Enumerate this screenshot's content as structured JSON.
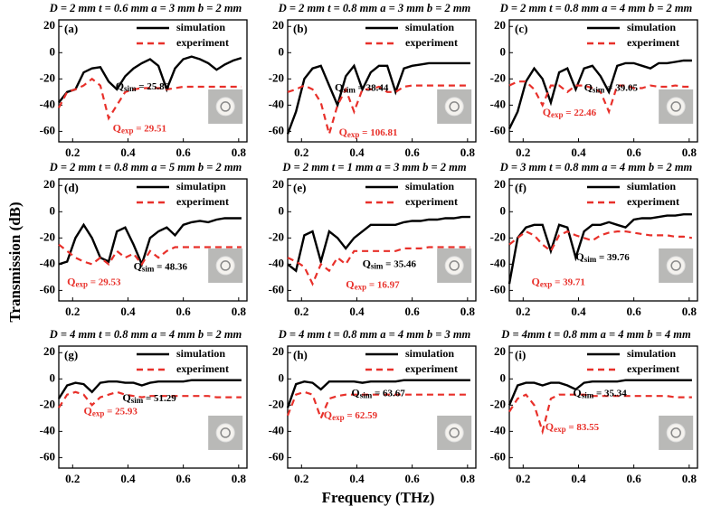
{
  "ylabel": "Transmission (dB)",
  "xlabel": "Frequency (THz)",
  "chart_data": [
    {
      "type": "line",
      "title": "D = 2 mm t = 0.6 mm a = 3 mm b = 2 mm",
      "label": "(a)",
      "x": [
        0.15,
        0.18,
        0.21,
        0.24,
        0.27,
        0.3,
        0.33,
        0.36,
        0.39,
        0.42,
        0.45,
        0.48,
        0.51,
        0.54,
        0.57,
        0.6,
        0.63,
        0.66,
        0.69,
        0.72,
        0.75,
        0.78,
        0.81
      ],
      "series": [
        {
          "name": "simulation",
          "color": "#000000",
          "dashed": false,
          "values": [
            -38,
            -30,
            -28,
            -15,
            -12,
            -11,
            -22,
            -28,
            -18,
            -12,
            -8,
            -5,
            -10,
            -28,
            -12,
            -5,
            -3,
            -5,
            -8,
            -13,
            -9,
            -6,
            -4
          ]
        },
        {
          "name": "experiment",
          "color": "#e8302a",
          "dashed": true,
          "values": [
            -42,
            -30,
            -28,
            -25,
            -20,
            -25,
            -50,
            -40,
            -30,
            -28,
            -27,
            -27,
            -27,
            -28,
            -27,
            -26,
            -26,
            -26,
            -26,
            -26,
            -26,
            -26,
            -26
          ]
        }
      ],
      "annotations": [
        {
          "symbol": "Q",
          "sub": "sim",
          "text": " = 25.86",
          "color": "#000000"
        },
        {
          "symbol": "Q",
          "sub": "exp",
          "text": " = 29.51",
          "color": "#e8302a"
        }
      ],
      "xlim": [
        0.15,
        0.83
      ],
      "ylim": [
        -68,
        25
      ],
      "xticks": [
        0.2,
        0.4,
        0.6,
        0.8
      ],
      "yticks": [
        20,
        0,
        -20,
        -40,
        -60
      ]
    },
    {
      "type": "line",
      "title": "D = 2 mm t = 0.8 mm a = 3 mm b = 2 mm",
      "label": "(b)",
      "x": [
        0.15,
        0.18,
        0.21,
        0.24,
        0.27,
        0.3,
        0.33,
        0.36,
        0.39,
        0.42,
        0.45,
        0.48,
        0.51,
        0.54,
        0.57,
        0.6,
        0.63,
        0.66,
        0.69,
        0.72,
        0.75,
        0.78,
        0.81
      ],
      "series": [
        {
          "name": "simulation",
          "color": "#000000",
          "dashed": false,
          "values": [
            -62,
            -45,
            -20,
            -12,
            -10,
            -25,
            -40,
            -18,
            -10,
            -28,
            -15,
            -10,
            -10,
            -30,
            -12,
            -10,
            -9,
            -8,
            -8,
            -8,
            -8,
            -8,
            -8
          ]
        },
        {
          "name": "experiment",
          "color": "#e8302a",
          "dashed": true,
          "values": [
            -30,
            -28,
            -25,
            -28,
            -38,
            -62,
            -40,
            -28,
            -45,
            -28,
            -28,
            -26,
            -30,
            -30,
            -26,
            -25,
            -25,
            -25,
            -25,
            -25,
            -25,
            -25,
            -25
          ]
        }
      ],
      "annotations": [
        {
          "symbol": "Q",
          "sub": "sim",
          "text": " = 38.44",
          "color": "#000000"
        },
        {
          "symbol": "Q",
          "sub": "exp",
          "text": " = 106.81",
          "color": "#e8302a"
        }
      ],
      "xlim": [
        0.15,
        0.83
      ],
      "ylim": [
        -68,
        25
      ],
      "xticks": [
        0.2,
        0.4,
        0.6,
        0.8
      ],
      "yticks": [
        20,
        0,
        -20,
        -40,
        -60
      ]
    },
    {
      "type": "line",
      "title": "D = 2 mm t = 0.8 mm a = 4 mm b = 2 mm",
      "label": "(c)",
      "x": [
        0.15,
        0.18,
        0.21,
        0.24,
        0.27,
        0.3,
        0.33,
        0.36,
        0.39,
        0.42,
        0.45,
        0.48,
        0.51,
        0.54,
        0.57,
        0.6,
        0.63,
        0.66,
        0.69,
        0.72,
        0.75,
        0.78,
        0.81
      ],
      "series": [
        {
          "name": "simulation",
          "color": "#000000",
          "dashed": false,
          "values": [
            -58,
            -45,
            -22,
            -12,
            -20,
            -38,
            -15,
            -12,
            -28,
            -12,
            -10,
            -18,
            -30,
            -10,
            -8,
            -8,
            -10,
            -12,
            -8,
            -8,
            -7,
            -6,
            -6
          ]
        },
        {
          "name": "experiment",
          "color": "#e8302a",
          "dashed": true,
          "values": [
            -25,
            -22,
            -22,
            -28,
            -40,
            -25,
            -25,
            -30,
            -25,
            -25,
            -27,
            -30,
            -45,
            -25,
            -25,
            -27,
            -27,
            -25,
            -26,
            -26,
            -25,
            -26,
            -26
          ]
        }
      ],
      "annotations": [
        {
          "symbol": "Q",
          "sub": "sim",
          "text": " = 39.05",
          "color": "#000000"
        },
        {
          "symbol": "Q",
          "sub": "exp",
          "text": " = 22.46",
          "color": "#e8302a"
        }
      ],
      "xlim": [
        0.15,
        0.83
      ],
      "ylim": [
        -68,
        25
      ],
      "xticks": [
        0.2,
        0.4,
        0.6,
        0.8
      ],
      "yticks": [
        20,
        0,
        -20,
        -40,
        -60
      ]
    },
    {
      "type": "line",
      "title": "D = 2 mm t = 0.8 mm a = 5 mm b = 2 mm",
      "label": "(d)",
      "x": [
        0.15,
        0.18,
        0.21,
        0.24,
        0.27,
        0.3,
        0.33,
        0.36,
        0.39,
        0.42,
        0.45,
        0.48,
        0.51,
        0.54,
        0.57,
        0.6,
        0.63,
        0.66,
        0.69,
        0.72,
        0.75,
        0.78,
        0.81
      ],
      "series": [
        {
          "name": "simulatipn",
          "color": "#000000",
          "dashed": false,
          "values": [
            -40,
            -38,
            -20,
            -10,
            -20,
            -35,
            -38,
            -15,
            -12,
            -25,
            -40,
            -20,
            -15,
            -12,
            -18,
            -10,
            -8,
            -7,
            -8,
            -6,
            -5,
            -5,
            -5
          ]
        },
        {
          "name": "experiment",
          "color": "#e8302a",
          "dashed": true,
          "values": [
            -25,
            -30,
            -35,
            -38,
            -40,
            -35,
            -40,
            -30,
            -35,
            -32,
            -40,
            -30,
            -35,
            -30,
            -27,
            -27,
            -27,
            -27,
            -27,
            -27,
            -27,
            -27,
            -27
          ]
        }
      ],
      "annotations": [
        {
          "symbol": "Q",
          "sub": "sim",
          "text": " = 48.36",
          "color": "#000000"
        },
        {
          "symbol": "Q",
          "sub": "exp",
          "text": " = 29.53",
          "color": "#e8302a"
        }
      ],
      "xlim": [
        0.15,
        0.83
      ],
      "ylim": [
        -68,
        25
      ],
      "xticks": [
        0.2,
        0.4,
        0.6,
        0.8
      ],
      "yticks": [
        20,
        0,
        -20,
        -40,
        -60
      ]
    },
    {
      "type": "line",
      "title": "D = 2 mm t = 1 mm a = 3 mm b = 2 mm",
      "label": "(e)",
      "x": [
        0.15,
        0.18,
        0.21,
        0.24,
        0.27,
        0.3,
        0.33,
        0.36,
        0.39,
        0.42,
        0.45,
        0.48,
        0.51,
        0.54,
        0.57,
        0.6,
        0.63,
        0.66,
        0.69,
        0.72,
        0.75,
        0.78,
        0.81
      ],
      "series": [
        {
          "name": "simulation",
          "color": "#000000",
          "dashed": false,
          "values": [
            -40,
            -45,
            -18,
            -15,
            -38,
            -15,
            -20,
            -28,
            -20,
            -15,
            -10,
            -10,
            -10,
            -10,
            -8,
            -7,
            -7,
            -6,
            -6,
            -5,
            -5,
            -4,
            -4
          ]
        },
        {
          "name": "experiment",
          "color": "#e8302a",
          "dashed": true,
          "values": [
            -35,
            -38,
            -42,
            -55,
            -40,
            -45,
            -35,
            -40,
            -30,
            -30,
            -30,
            -30,
            -30,
            -30,
            -28,
            -28,
            -28,
            -27,
            -27,
            -27,
            -27,
            -27,
            -27
          ]
        }
      ],
      "annotations": [
        {
          "symbol": "Q",
          "sub": "sim",
          "text": " = 35.46",
          "color": "#000000"
        },
        {
          "symbol": "Q",
          "sub": "exp",
          "text": " = 16.97",
          "color": "#e8302a"
        }
      ],
      "xlim": [
        0.15,
        0.83
      ],
      "ylim": [
        -68,
        25
      ],
      "xticks": [
        0.2,
        0.4,
        0.6,
        0.8
      ],
      "yticks": [
        20,
        0,
        -20,
        -40,
        -60
      ]
    },
    {
      "type": "line",
      "title": "D = 3 mm t = 0.8 mm a = 4 mm b = 2 mm",
      "label": "(f)",
      "x": [
        0.15,
        0.18,
        0.21,
        0.24,
        0.27,
        0.3,
        0.33,
        0.36,
        0.39,
        0.42,
        0.45,
        0.48,
        0.51,
        0.54,
        0.57,
        0.6,
        0.63,
        0.66,
        0.69,
        0.72,
        0.75,
        0.78,
        0.81
      ],
      "series": [
        {
          "name": "siumlation",
          "color": "#000000",
          "dashed": false,
          "values": [
            -55,
            -20,
            -12,
            -10,
            -10,
            -30,
            -10,
            -12,
            -35,
            -15,
            -10,
            -10,
            -8,
            -10,
            -12,
            -6,
            -5,
            -5,
            -4,
            -3,
            -3,
            -2,
            -2
          ]
        },
        {
          "name": "experiment",
          "color": "#e8302a",
          "dashed": true,
          "values": [
            -25,
            -20,
            -15,
            -18,
            -25,
            -30,
            -18,
            -15,
            -18,
            -20,
            -22,
            -18,
            -16,
            -15,
            -15,
            -16,
            -17,
            -18,
            -18,
            -18,
            -19,
            -19,
            -20
          ]
        }
      ],
      "annotations": [
        {
          "symbol": "Q",
          "sub": "sim",
          "text": " = 39.76",
          "color": "#000000"
        },
        {
          "symbol": "Q",
          "sub": "exp",
          "text": " = 39.71",
          "color": "#e8302a"
        }
      ],
      "xlim": [
        0.15,
        0.83
      ],
      "ylim": [
        -68,
        25
      ],
      "xticks": [
        0.2,
        0.4,
        0.6,
        0.8
      ],
      "yticks": [
        20,
        0,
        -20,
        -40,
        -60
      ]
    },
    {
      "type": "line",
      "title": "D = 4 mm t = 0.8 mm a = 4 mm b = 2 mm",
      "label": "(g)",
      "x": [
        0.15,
        0.18,
        0.21,
        0.24,
        0.27,
        0.3,
        0.33,
        0.36,
        0.39,
        0.42,
        0.45,
        0.48,
        0.51,
        0.54,
        0.57,
        0.6,
        0.63,
        0.66,
        0.69,
        0.72,
        0.75,
        0.78,
        0.81
      ],
      "series": [
        {
          "name": "simulation",
          "color": "#000000",
          "dashed": false,
          "values": [
            -15,
            -5,
            -3,
            -4,
            -10,
            -3,
            -2,
            -2,
            -3,
            -3,
            -5,
            -3,
            -2,
            -2,
            -2,
            -2,
            -1,
            -1,
            -1,
            -1,
            -1,
            -1,
            -1
          ]
        },
        {
          "name": "experiment",
          "color": "#e8302a",
          "dashed": true,
          "values": [
            -22,
            -12,
            -10,
            -12,
            -20,
            -14,
            -12,
            -10,
            -12,
            -13,
            -14,
            -13,
            -13,
            -13,
            -13,
            -13,
            -13,
            -13,
            -13,
            -14,
            -14,
            -14,
            -14
          ]
        }
      ],
      "annotations": [
        {
          "symbol": "Q",
          "sub": "sim",
          "text": " = 51.29",
          "color": "#000000"
        },
        {
          "symbol": "Q",
          "sub": "exp",
          "text": " = 25.93",
          "color": "#e8302a"
        }
      ],
      "xlim": [
        0.15,
        0.83
      ],
      "ylim": [
        -68,
        25
      ],
      "xticks": [
        0.2,
        0.4,
        0.6,
        0.8
      ],
      "yticks": [
        20,
        0,
        -20,
        -40,
        -60
      ]
    },
    {
      "type": "line",
      "title": "D = 4 mm t = 0.8 mm a = 4 mm b = 3 mm",
      "label": "(h)",
      "x": [
        0.15,
        0.18,
        0.21,
        0.24,
        0.27,
        0.3,
        0.33,
        0.36,
        0.39,
        0.42,
        0.45,
        0.48,
        0.51,
        0.54,
        0.57,
        0.6,
        0.63,
        0.66,
        0.69,
        0.72,
        0.75,
        0.78,
        0.81
      ],
      "series": [
        {
          "name": "simulation",
          "color": "#000000",
          "dashed": false,
          "values": [
            -22,
            -4,
            -2,
            -3,
            -8,
            -2,
            -2,
            -2,
            -2,
            -3,
            -2,
            -2,
            -2,
            -2,
            -1,
            -1,
            -1,
            -1,
            -1,
            -1,
            -1,
            -1,
            -1
          ]
        },
        {
          "name": "experiment",
          "color": "#e8302a",
          "dashed": true,
          "values": [
            -28,
            -12,
            -10,
            -12,
            -30,
            -15,
            -13,
            -12,
            -12,
            -12,
            -12,
            -12,
            -12,
            -12,
            -12,
            -12,
            -12,
            -12,
            -12,
            -12,
            -12,
            -12,
            -12
          ]
        }
      ],
      "annotations": [
        {
          "symbol": "Q",
          "sub": "sim",
          "text": " = 63.67",
          "color": "#000000"
        },
        {
          "symbol": "Q",
          "sub": "exp",
          "text": " = 62.59",
          "color": "#e8302a"
        }
      ],
      "xlim": [
        0.15,
        0.83
      ],
      "ylim": [
        -68,
        25
      ],
      "xticks": [
        0.2,
        0.4,
        0.6,
        0.8
      ],
      "yticks": [
        20,
        0,
        -20,
        -40,
        -60
      ]
    },
    {
      "type": "line",
      "title": "D = 4mm t = 0.8 mm a = 4 mm b = 4 mm",
      "label": "(i)",
      "x": [
        0.15,
        0.18,
        0.21,
        0.24,
        0.27,
        0.3,
        0.33,
        0.36,
        0.39,
        0.42,
        0.45,
        0.48,
        0.51,
        0.54,
        0.57,
        0.6,
        0.63,
        0.66,
        0.69,
        0.72,
        0.75,
        0.78,
        0.81
      ],
      "series": [
        {
          "name": "simulation",
          "color": "#000000",
          "dashed": false,
          "values": [
            -20,
            -5,
            -3,
            -3,
            -5,
            -3,
            -3,
            -5,
            -8,
            -3,
            -2,
            -2,
            -2,
            -2,
            -1,
            -1,
            -1,
            -1,
            -1,
            -1,
            -1,
            -1,
            -1
          ]
        },
        {
          "name": "experiment",
          "color": "#e8302a",
          "dashed": true,
          "values": [
            -25,
            -15,
            -12,
            -20,
            -40,
            -15,
            -12,
            -12,
            -12,
            -12,
            -13,
            -13,
            -13,
            -13,
            -13,
            -13,
            -13,
            -13,
            -13,
            -13,
            -14,
            -14,
            -14
          ]
        }
      ],
      "annotations": [
        {
          "symbol": "Q",
          "sub": "sim",
          "text": " = 35.34",
          "color": "#000000"
        },
        {
          "symbol": "Q",
          "sub": "exp",
          "text": " = 83.55",
          "color": "#e8302a"
        }
      ],
      "xlim": [
        0.15,
        0.83
      ],
      "ylim": [
        -68,
        25
      ],
      "xticks": [
        0.2,
        0.4,
        0.6,
        0.8
      ],
      "yticks": [
        20,
        0,
        -20,
        -40,
        -60
      ]
    }
  ]
}
